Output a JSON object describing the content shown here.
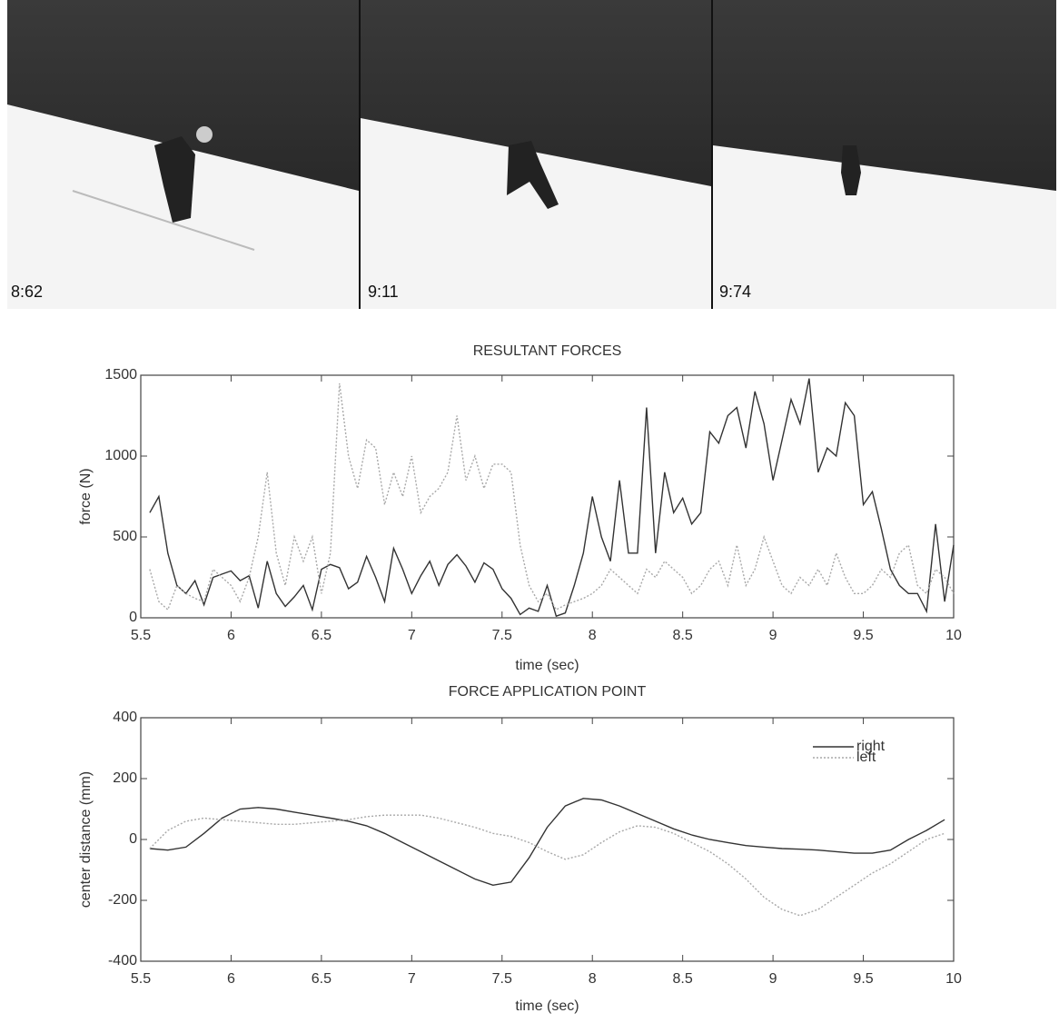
{
  "photos": [
    {
      "label": "8:62"
    },
    {
      "label": "9:11"
    },
    {
      "label": "9:74"
    }
  ],
  "chart_data": [
    {
      "type": "line",
      "title": "RESULTANT FORCES",
      "xlabel": "time (sec)",
      "ylabel": "force (N)",
      "x": [
        5.55,
        5.6,
        5.65,
        5.7,
        5.75,
        5.8,
        5.85,
        5.9,
        5.95,
        6,
        6.05,
        6.1,
        6.15,
        6.2,
        6.25,
        6.3,
        6.35,
        6.4,
        6.45,
        6.5,
        6.55,
        6.6,
        6.65,
        6.7,
        6.75,
        6.8,
        6.85,
        6.9,
        6.95,
        7,
        7.05,
        7.1,
        7.15,
        7.2,
        7.25,
        7.3,
        7.35,
        7.4,
        7.45,
        7.5,
        7.55,
        7.6,
        7.65,
        7.7,
        7.75,
        7.8,
        7.85,
        7.9,
        7.95,
        8,
        8.05,
        8.1,
        8.15,
        8.2,
        8.25,
        8.3,
        8.35,
        8.4,
        8.45,
        8.5,
        8.55,
        8.6,
        8.65,
        8.7,
        8.75,
        8.8,
        8.85,
        8.9,
        8.95,
        9,
        9.05,
        9.1,
        9.15,
        9.2,
        9.25,
        9.3,
        9.35,
        9.4,
        9.45,
        9.5,
        9.55,
        9.6,
        9.65,
        9.7,
        9.75,
        9.8,
        9.85,
        9.9,
        9.95,
        10
      ],
      "series": [
        {
          "name": "right",
          "color": "#333333",
          "line_style": "solid",
          "values": [
            650,
            750,
            400,
            200,
            150,
            230,
            80,
            250,
            270,
            290,
            230,
            260,
            60,
            350,
            150,
            70,
            130,
            200,
            50,
            300,
            330,
            310,
            180,
            220,
            380,
            250,
            100,
            430,
            300,
            150,
            260,
            350,
            200,
            330,
            390,
            320,
            220,
            340,
            300,
            180,
            120,
            20,
            60,
            40,
            200,
            10,
            30,
            200,
            400,
            750,
            500,
            350,
            850,
            400,
            400,
            1300,
            400,
            900,
            650,
            740,
            580,
            650,
            1150,
            1080,
            1250,
            1300,
            1050,
            1400,
            1200,
            850,
            1100,
            1350,
            1200,
            1480,
            900,
            1050,
            1000,
            1330,
            1250,
            700,
            780,
            550,
            300,
            200,
            150,
            150,
            40,
            580,
            100,
            450
          ]
        },
        {
          "name": "left",
          "color": "#a8a8a8",
          "line_style": "dotted",
          "values": [
            300,
            100,
            50,
            200,
            150,
            120,
            100,
            300,
            250,
            200,
            100,
            250,
            500,
            900,
            400,
            200,
            500,
            350,
            500,
            150,
            400,
            1450,
            1000,
            800,
            1100,
            1050,
            700,
            900,
            750,
            1000,
            650,
            750,
            800,
            900,
            1250,
            850,
            1000,
            800,
            950,
            950,
            900,
            450,
            200,
            100,
            150,
            50,
            80,
            100,
            120,
            150,
            200,
            300,
            250,
            200,
            150,
            300,
            250,
            350,
            300,
            250,
            150,
            200,
            300,
            350,
            200,
            450,
            200,
            300,
            500,
            350,
            200,
            150,
            250,
            200,
            300,
            200,
            400,
            250,
            150,
            150,
            200,
            300,
            250,
            400,
            450,
            200,
            150,
            300,
            250,
            150
          ]
        }
      ],
      "xlim": [
        5.5,
        10
      ],
      "xticks": [
        5.5,
        6,
        6.5,
        7,
        7.5,
        8,
        8.5,
        9,
        9.5,
        10
      ],
      "ylim": [
        0,
        1500
      ],
      "yticks": [
        0,
        500,
        1000,
        1500
      ],
      "grid": false,
      "legend": false
    },
    {
      "type": "line",
      "title": "FORCE APPLICATION POINT",
      "xlabel": "time (sec)",
      "ylabel": "center distance (mm)",
      "x": [
        5.55,
        5.65,
        5.75,
        5.85,
        5.95,
        6.05,
        6.15,
        6.25,
        6.35,
        6.45,
        6.55,
        6.65,
        6.75,
        6.85,
        6.95,
        7.05,
        7.15,
        7.25,
        7.35,
        7.45,
        7.55,
        7.65,
        7.75,
        7.85,
        7.95,
        8.05,
        8.15,
        8.25,
        8.35,
        8.45,
        8.55,
        8.65,
        8.75,
        8.85,
        8.95,
        9.05,
        9.15,
        9.25,
        9.35,
        9.45,
        9.55,
        9.65,
        9.75,
        9.85,
        9.95
      ],
      "series": [
        {
          "name": "right",
          "color": "#333333",
          "line_style": "solid",
          "values": [
            -30,
            -35,
            -25,
            20,
            70,
            100,
            105,
            100,
            90,
            80,
            70,
            60,
            45,
            20,
            -10,
            -40,
            -70,
            -100,
            -130,
            -150,
            -140,
            -60,
            40,
            110,
            135,
            130,
            110,
            85,
            60,
            35,
            15,
            0,
            -10,
            -20,
            -25,
            -30,
            -32,
            -35,
            -40,
            -45,
            -45,
            -35,
            0,
            30,
            65
          ]
        },
        {
          "name": "left",
          "color": "#a8a8a8",
          "line_style": "dotted",
          "values": [
            -30,
            30,
            60,
            70,
            65,
            60,
            55,
            50,
            50,
            55,
            60,
            65,
            75,
            80,
            80,
            80,
            70,
            55,
            40,
            20,
            10,
            -10,
            -40,
            -65,
            -50,
            -10,
            25,
            45,
            40,
            20,
            -10,
            -40,
            -80,
            -130,
            -190,
            -230,
            -250,
            -230,
            -190,
            -150,
            -110,
            -80,
            -40,
            0,
            20
          ]
        }
      ],
      "xlim": [
        5.5,
        10
      ],
      "xticks": [
        5.5,
        6,
        6.5,
        7,
        7.5,
        8,
        8.5,
        9,
        9.5,
        10
      ],
      "ylim": [
        -400,
        400
      ],
      "yticks": [
        -400,
        -200,
        0,
        200,
        400
      ],
      "grid": false,
      "legend": "upper right"
    }
  ]
}
